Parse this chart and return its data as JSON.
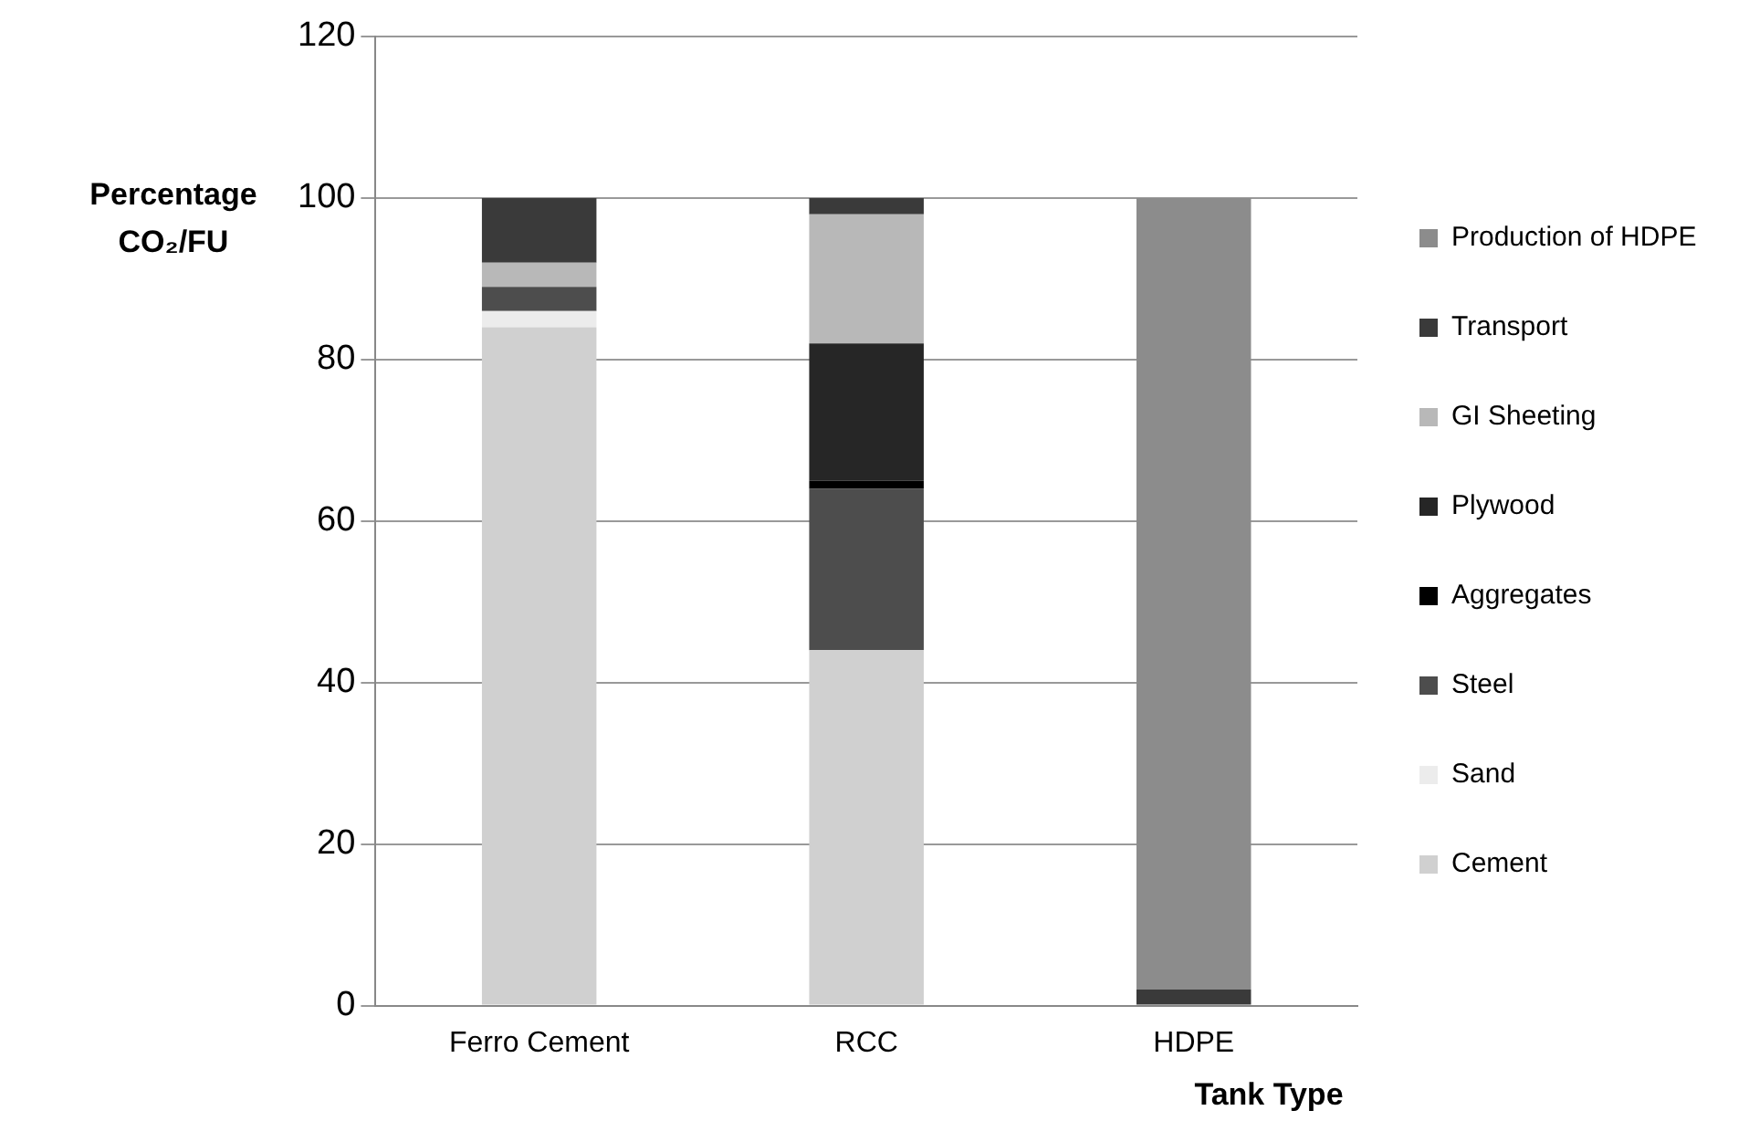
{
  "chart_data": {
    "type": "bar",
    "stacked": true,
    "ylabel": "Percentage CO₂/FU",
    "xlabel": "Tank Type",
    "categories": [
      "Ferro Cement",
      "RCC",
      "HDPE"
    ],
    "series": [
      {
        "name": "Cement",
        "color": "#d0d0d0",
        "values": [
          84,
          44,
          0
        ]
      },
      {
        "name": "Sand",
        "color": "#ececec",
        "values": [
          2,
          0,
          0
        ]
      },
      {
        "name": "Steel",
        "color": "#4d4d4d",
        "values": [
          3,
          20,
          0
        ]
      },
      {
        "name": "Aggregates",
        "color": "#000000",
        "values": [
          0,
          1,
          0
        ]
      },
      {
        "name": "Plywood",
        "color": "#262626",
        "values": [
          0,
          17,
          0
        ]
      },
      {
        "name": "GI Sheeting",
        "color": "#b8b8b8",
        "values": [
          3,
          16,
          0
        ]
      },
      {
        "name": "Transport",
        "color": "#3a3a3a",
        "values": [
          8,
          2,
          2
        ]
      },
      {
        "name": "Production of HDPE",
        "color": "#8c8c8c",
        "values": [
          0,
          0,
          98
        ]
      }
    ],
    "ylim": [
      0,
      120
    ],
    "yticks": [
      0,
      20,
      40,
      60,
      80,
      100,
      120
    ],
    "grid": "y",
    "legend": "right"
  }
}
